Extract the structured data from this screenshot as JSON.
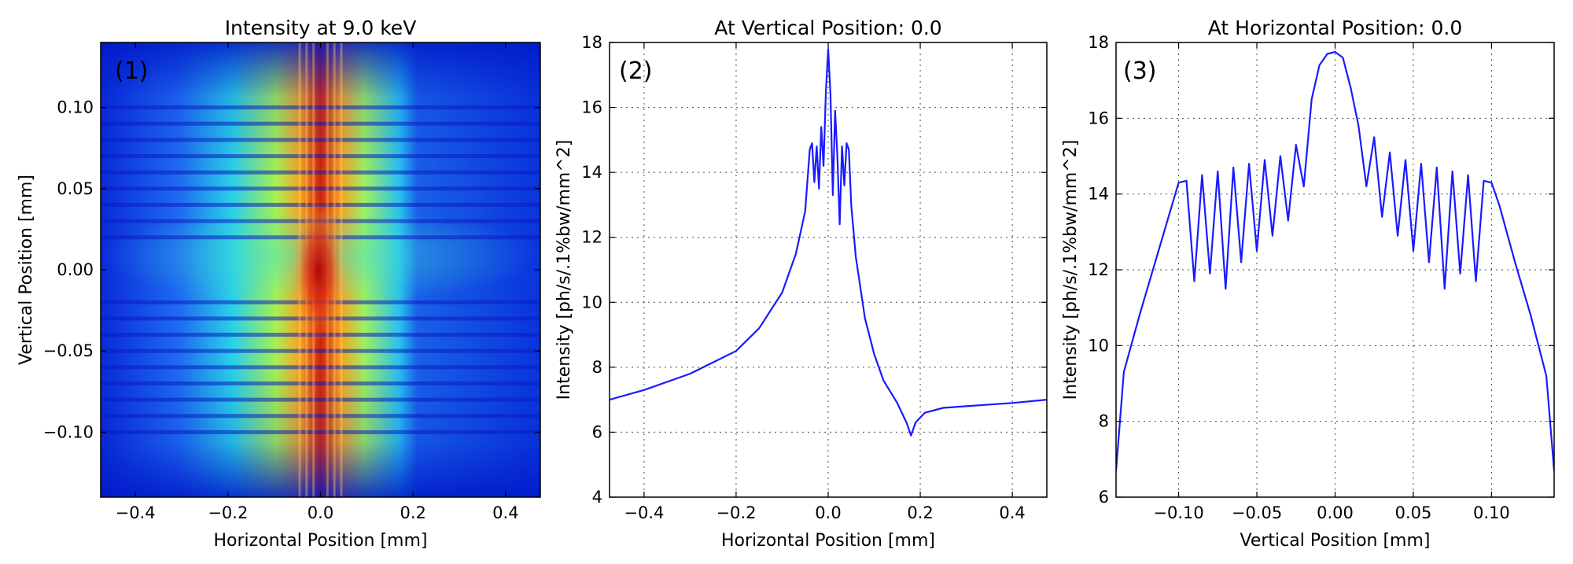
{
  "colors": {
    "line": "#1a1aff"
  },
  "chart_data": [
    {
      "type": "heatmap",
      "panel_label": "(1)",
      "title": "Intensity at 9.0 keV",
      "xlabel": "Horizontal Position [mm]",
      "ylabel": "Vertical Position [mm]",
      "xlim": [
        -0.475,
        0.475
      ],
      "ylim": [
        -0.14,
        0.14
      ],
      "xticks": [
        -0.4,
        -0.2,
        0.0,
        0.2,
        0.4
      ],
      "xtick_labels": [
        "−0.4",
        "−0.2",
        "0.0",
        "0.2",
        "0.4"
      ],
      "yticks": [
        -0.1,
        -0.05,
        0.0,
        0.05,
        0.1
      ],
      "ytick_labels": [
        "−0.10",
        "−0.05",
        "0.00",
        "0.05",
        "0.10"
      ],
      "colormap": "jet",
      "vertical_fringes_x": [
        -0.045,
        -0.03,
        -0.015,
        0.015,
        0.03,
        0.045
      ],
      "horizontal_dark_bands_y": [
        -0.1,
        -0.09,
        -0.08,
        -0.07,
        -0.06,
        -0.05,
        -0.04,
        -0.03,
        -0.02,
        0.02,
        0.03,
        0.04,
        0.05,
        0.06,
        0.07,
        0.08,
        0.09,
        0.1
      ],
      "grid": false
    },
    {
      "type": "line",
      "panel_label": "(2)",
      "title": "At Vertical Position: 0.0",
      "xlabel": "Horizontal Position [mm]",
      "ylabel": "Intensity [ph/s/.1%bw/mm^2]",
      "xlim": [
        -0.475,
        0.475
      ],
      "ylim": [
        4,
        18
      ],
      "xticks": [
        -0.4,
        -0.2,
        0.0,
        0.2,
        0.4
      ],
      "xtick_labels": [
        "−0.4",
        "−0.2",
        "0.0",
        "0.2",
        "0.4"
      ],
      "yticks": [
        4,
        6,
        8,
        10,
        12,
        14,
        16,
        18
      ],
      "ytick_labels": [
        "4",
        "6",
        "8",
        "10",
        "12",
        "14",
        "16",
        "18"
      ],
      "grid": true,
      "x": [
        -0.475,
        -0.4,
        -0.3,
        -0.2,
        -0.15,
        -0.1,
        -0.07,
        -0.05,
        -0.04,
        -0.035,
        -0.03,
        -0.025,
        -0.02,
        -0.015,
        -0.01,
        -0.005,
        0.0,
        0.005,
        0.01,
        0.015,
        0.02,
        0.025,
        0.03,
        0.035,
        0.04,
        0.045,
        0.05,
        0.06,
        0.08,
        0.1,
        0.12,
        0.15,
        0.17,
        0.18,
        0.19,
        0.21,
        0.25,
        0.3,
        0.4,
        0.475
      ],
      "y": [
        7.0,
        7.3,
        7.8,
        8.5,
        9.2,
        10.3,
        11.5,
        12.8,
        14.7,
        14.9,
        13.7,
        14.8,
        13.5,
        15.4,
        14.2,
        16.5,
        17.8,
        16.4,
        13.3,
        15.9,
        14.5,
        12.4,
        14.8,
        13.6,
        14.9,
        14.7,
        13.0,
        11.4,
        9.5,
        8.4,
        7.6,
        6.9,
        6.3,
        5.9,
        6.3,
        6.6,
        6.75,
        6.8,
        6.9,
        7.0
      ]
    },
    {
      "type": "line",
      "panel_label": "(3)",
      "title": "At Horizontal Position: 0.0",
      "xlabel": "Vertical Position [mm]",
      "ylabel": "Intensity [ph/s/.1%bw/mm^2]",
      "xlim": [
        -0.14,
        0.14
      ],
      "ylim": [
        6,
        18
      ],
      "xticks": [
        -0.1,
        -0.05,
        0.0,
        0.05,
        0.1
      ],
      "xtick_labels": [
        "−0.10",
        "−0.05",
        "0.00",
        "0.05",
        "0.10"
      ],
      "yticks": [
        6,
        8,
        10,
        12,
        14,
        16,
        18
      ],
      "ytick_labels": [
        "6",
        "8",
        "10",
        "12",
        "14",
        "16",
        "18"
      ],
      "grid": true,
      "x": [
        -0.14,
        -0.135,
        -0.125,
        -0.115,
        -0.105,
        -0.1,
        -0.095,
        -0.09,
        -0.085,
        -0.08,
        -0.075,
        -0.07,
        -0.065,
        -0.06,
        -0.055,
        -0.05,
        -0.045,
        -0.04,
        -0.035,
        -0.03,
        -0.025,
        -0.02,
        -0.015,
        -0.01,
        -0.005,
        0.0,
        0.005,
        0.01,
        0.015,
        0.02,
        0.025,
        0.03,
        0.035,
        0.04,
        0.045,
        0.05,
        0.055,
        0.06,
        0.065,
        0.07,
        0.075,
        0.08,
        0.085,
        0.09,
        0.095,
        0.1,
        0.105,
        0.115,
        0.125,
        0.135,
        0.14
      ],
      "y": [
        6.7,
        9.3,
        10.8,
        12.2,
        13.6,
        14.3,
        14.35,
        11.7,
        14.5,
        11.9,
        14.6,
        11.5,
        14.7,
        12.2,
        14.8,
        12.5,
        14.9,
        12.9,
        15.0,
        13.3,
        15.3,
        14.2,
        16.5,
        17.4,
        17.7,
        17.75,
        17.6,
        16.8,
        15.8,
        14.2,
        15.5,
        13.4,
        15.1,
        12.9,
        14.9,
        12.5,
        14.8,
        12.2,
        14.7,
        11.5,
        14.6,
        11.9,
        14.5,
        11.7,
        14.35,
        14.3,
        13.7,
        12.2,
        10.8,
        9.2,
        6.7
      ]
    }
  ]
}
